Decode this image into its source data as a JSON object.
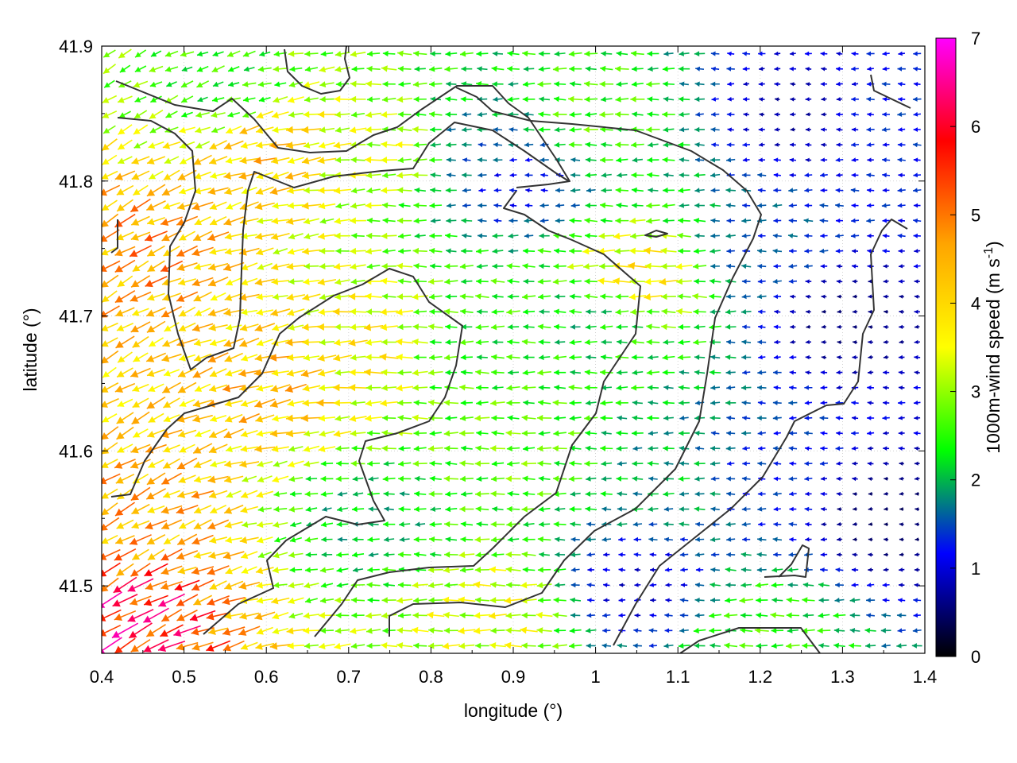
{
  "chart_data": {
    "type": "vector-field",
    "xlabel": "longitude (°)",
    "ylabel": "latitude (°)",
    "xlim": [
      0.4,
      1.4
    ],
    "ylim": [
      41.45,
      41.9
    ],
    "xticks": [
      0.4,
      0.5,
      0.6,
      0.7,
      0.8,
      0.9,
      1.0,
      1.1,
      1.2,
      1.3,
      1.4
    ],
    "xtick_labels": [
      "0.4",
      "0.5",
      "0.6",
      "0.7",
      "0.8",
      "0.9",
      "1",
      "1.1",
      "1.2",
      "1.3",
      "1.4"
    ],
    "yticks": [
      41.5,
      41.6,
      41.7,
      41.8,
      41.9
    ],
    "ytick_labels": [
      "41.5",
      "41.6",
      "41.7",
      "41.8",
      "41.9"
    ],
    "grid": true,
    "colorbar": {
      "label": "1000m-wind speed (m s",
      "label_sup": "-1",
      "label_close": ")",
      "range": [
        0,
        7
      ],
      "ticks": [
        0,
        1,
        2,
        3,
        4,
        5,
        6,
        7
      ],
      "tick_labels": [
        "0",
        "1",
        "2",
        "3",
        "4",
        "5",
        "6",
        "7"
      ],
      "colors": [
        "#000000",
        "#0000ff",
        "#00ff00",
        "#ffff00",
        "#ffa500",
        "#ff0000",
        "#ff00ff"
      ]
    },
    "vector_grid": {
      "nx": 53,
      "ny": 40
    },
    "speed_anchors": [
      {
        "lon": 0.45,
        "lat": 41.75,
        "speed": 5.0
      },
      {
        "lon": 0.45,
        "lat": 41.55,
        "speed": 4.8
      },
      {
        "lon": 0.42,
        "lat": 41.48,
        "speed": 6.3
      },
      {
        "lon": 0.6,
        "lat": 41.82,
        "speed": 4.5
      },
      {
        "lon": 0.6,
        "lat": 41.65,
        "speed": 4.6
      },
      {
        "lon": 0.55,
        "lat": 41.87,
        "speed": 2.6
      },
      {
        "lon": 0.72,
        "lat": 41.55,
        "speed": 2.2
      },
      {
        "lon": 0.72,
        "lat": 41.68,
        "speed": 3.9
      },
      {
        "lon": 0.75,
        "lat": 41.82,
        "speed": 3.5
      },
      {
        "lon": 0.85,
        "lat": 41.82,
        "speed": 1.8
      },
      {
        "lon": 0.9,
        "lat": 41.8,
        "speed": 1.2
      },
      {
        "lon": 0.85,
        "lat": 41.68,
        "speed": 2.6
      },
      {
        "lon": 0.9,
        "lat": 41.6,
        "speed": 2.9
      },
      {
        "lon": 0.88,
        "lat": 41.48,
        "speed": 3.6
      },
      {
        "lon": 1.0,
        "lat": 41.85,
        "speed": 2.8
      },
      {
        "lon": 1.0,
        "lat": 41.7,
        "speed": 2.3
      },
      {
        "lon": 1.05,
        "lat": 41.73,
        "speed": 4.0
      },
      {
        "lon": 1.1,
        "lat": 41.58,
        "speed": 2.1
      },
      {
        "lon": 1.05,
        "lat": 41.5,
        "speed": 1.0
      },
      {
        "lon": 1.2,
        "lat": 41.75,
        "speed": 1.6
      },
      {
        "lon": 1.2,
        "lat": 41.58,
        "speed": 1.4
      },
      {
        "lon": 1.25,
        "lat": 41.85,
        "speed": 0.8
      },
      {
        "lon": 1.3,
        "lat": 41.7,
        "speed": 0.6
      },
      {
        "lon": 1.35,
        "lat": 41.55,
        "speed": 0.5
      },
      {
        "lon": 1.2,
        "lat": 41.47,
        "speed": 2.7
      },
      {
        "lon": 1.35,
        "lat": 41.85,
        "speed": 1.4
      }
    ],
    "direction": "mostly westward (toward decreasing longitude), with a south-westward component in the west of the domain"
  }
}
